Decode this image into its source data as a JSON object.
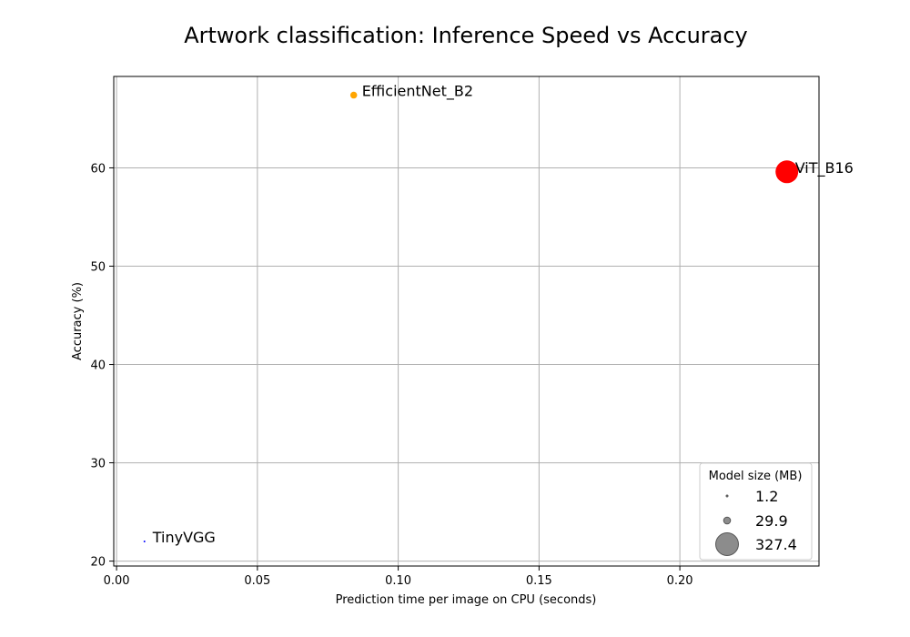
{
  "chart_data": {
    "type": "scatter",
    "title": "Artwork classification: Inference Speed vs Accuracy",
    "xlabel": "Prediction time per image on CPU (seconds)",
    "ylabel": "Accuracy (%)",
    "xlim": [
      -0.001,
      0.2494
    ],
    "ylim": [
      19.5,
      69.3
    ],
    "xticks": [
      0.0,
      0.05,
      0.1,
      0.15,
      0.2
    ],
    "xtick_labels": [
      "0.00",
      "0.05",
      "0.10",
      "0.15",
      "0.20"
    ],
    "yticks": [
      20,
      30,
      40,
      50,
      60
    ],
    "ytick_labels": [
      "20",
      "30",
      "40",
      "50",
      "60"
    ],
    "grid": true,
    "points": [
      {
        "label": "TinyVGG",
        "x": 0.0099,
        "y": 22.0,
        "size_mb": 1.2,
        "color": "#0000ff"
      },
      {
        "label": "EfficientNet_B2",
        "x": 0.0842,
        "y": 67.4,
        "size_mb": 29.9,
        "color": "#ffa500"
      },
      {
        "label": "ViT_B16",
        "x": 0.238,
        "y": 59.6,
        "size_mb": 327.4,
        "color": "#ff0000"
      }
    ],
    "legend": {
      "title": "Model size (MB)",
      "placement": "lower-right",
      "entries": [
        "1.2",
        "29.9",
        "327.4"
      ],
      "marker_color": "#808080"
    }
  }
}
